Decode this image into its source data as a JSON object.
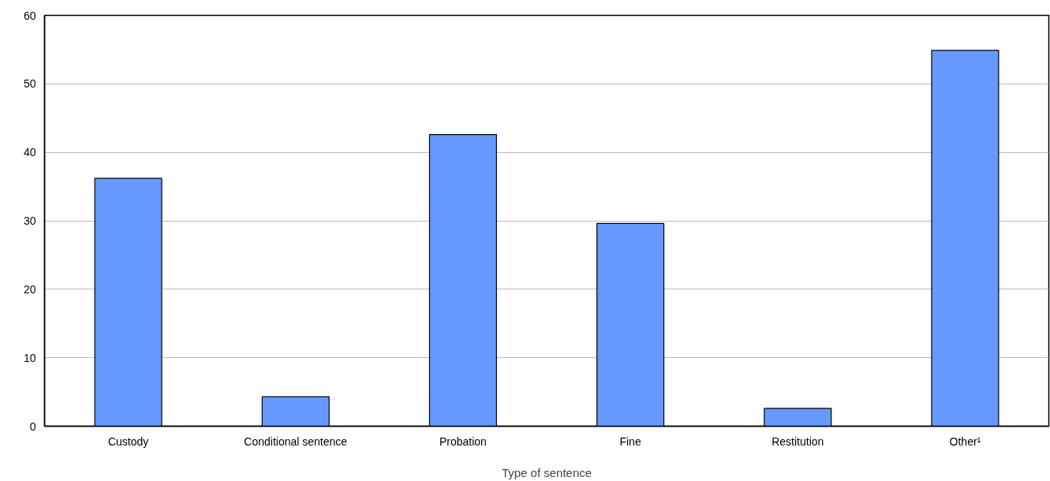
{
  "chart_data": {
    "type": "bar",
    "xlabel": "Type of sentence",
    "categories": [
      "Custody",
      "Conditional sentence",
      "Probation",
      "Fine",
      "Restitution",
      "Other¹"
    ],
    "values": [
      36.2,
      4.3,
      42.6,
      29.6,
      2.6,
      54.9
    ],
    "color": "#6699ff",
    "ylim": [
      0,
      60
    ],
    "yticks": [
      0,
      10,
      20,
      30,
      40,
      50,
      60
    ],
    "grid": "y"
  }
}
